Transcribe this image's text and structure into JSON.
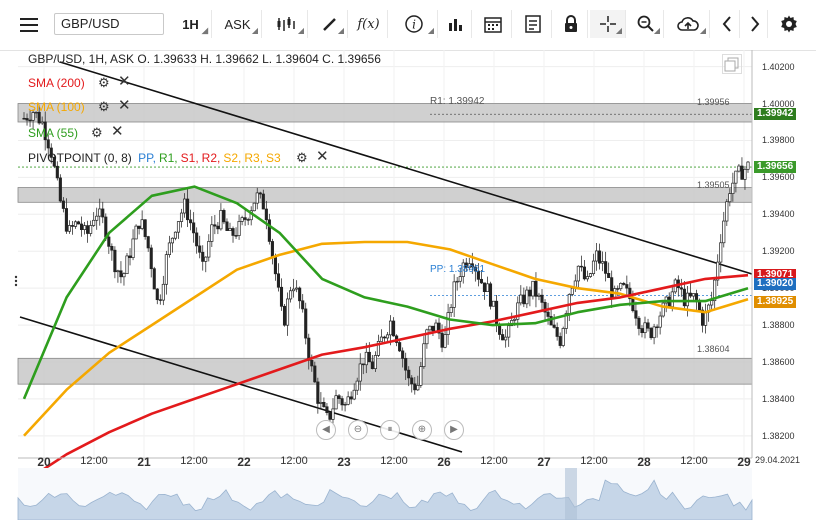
{
  "toolbar": {
    "menu_icon": "hamburger-icon",
    "symbol": "GBP/USD",
    "timeframe": "1H",
    "price_type": "ASK",
    "buttons": [
      "candles-icon",
      "draw-pen-icon",
      "function-icon",
      "info-icon",
      "bar-chart-icon",
      "calendar-icon",
      "report-icon",
      "lock-icon",
      "crosshair-icon",
      "zoom-icon",
      "cloud-upload-icon",
      "chevron-left-icon",
      "chevron-right-icon",
      "gear-icon"
    ],
    "function_label": "f(x)"
  },
  "header": {
    "ohlc": "GBP/USD, 1H, ASK   O. 1.39633 H. 1.39662 L. 1.39604 C. 1.39656"
  },
  "indicators": {
    "sma200": {
      "label": "SMA (200)",
      "color": "#e31a1c"
    },
    "sma100": {
      "label": "SMA (100)",
      "color": "#f5a800"
    },
    "sma55": {
      "label": "SMA (55)",
      "color": "#2e9e1e"
    },
    "pivot": {
      "prefix": "PIVOTPOINT (0, 8)",
      "items": [
        {
          "label": "PP,",
          "color": "#2a7fd4"
        },
        {
          "label": "R1,",
          "color": "#2e9e1e"
        },
        {
          "label": "S1,",
          "color": "#e31a1c"
        },
        {
          "label": "R2,",
          "color": "#e31a1c"
        },
        {
          "label": "S2,",
          "color": "#f5a800"
        },
        {
          "label": "R3,",
          "color": "#f5a800"
        },
        {
          "label": "S3",
          "color": "#f5a800"
        }
      ]
    }
  },
  "annotations": {
    "r1": "R1: 1.39942",
    "pp": "PP: 1.38961",
    "level_top": "1.39956",
    "level_mid": "1.39505",
    "level_bot": "1.38604"
  },
  "price_tags": [
    {
      "value": "1.39942",
      "price": 1.39942,
      "color": "#2e7d1e"
    },
    {
      "value": "1.39656",
      "price": 1.39656,
      "color": "#3a9a2a"
    },
    {
      "value": "1.39071",
      "price": 1.39071,
      "color": "#d7191c"
    },
    {
      "value": "1.39020",
      "price": 1.3902,
      "color": "#1f6fc0"
    },
    {
      "value": "1.38925",
      "price": 1.38925,
      "color": "#e08e00"
    }
  ],
  "chart_data": {
    "type": "candlestick",
    "symbol": "GBP/USD",
    "timeframe": "1H",
    "date_label": "29.04.2021",
    "x_ticks": [
      {
        "label": "20",
        "day": true
      },
      {
        "label": "12:00"
      },
      {
        "label": "21",
        "day": true
      },
      {
        "label": "12:00"
      },
      {
        "label": "22",
        "day": true
      },
      {
        "label": "12:00"
      },
      {
        "label": "23",
        "day": true
      },
      {
        "label": "12:00"
      },
      {
        "label": "26",
        "day": true
      },
      {
        "label": "12:00"
      },
      {
        "label": "27",
        "day": true
      },
      {
        "label": "12:00"
      },
      {
        "label": "28",
        "day": true
      },
      {
        "label": "12:00"
      },
      {
        "label": "29",
        "day": true
      }
    ],
    "y_ticks": [
      "1.40200",
      "1.40000",
      "1.39800",
      "1.39600",
      "1.39400",
      "1.39200",
      "1.39000",
      "1.38800",
      "1.38600",
      "1.38400",
      "1.38200"
    ],
    "ylim": [
      1.3808,
      1.4029
    ],
    "close_path": [
      1.3992,
      1.3996,
      1.399,
      1.3975,
      1.3948,
      1.393,
      1.3936,
      1.3928,
      1.3942,
      1.3935,
      1.3915,
      1.3905,
      1.3922,
      1.3938,
      1.392,
      1.389,
      1.3918,
      1.3935,
      1.3945,
      1.393,
      1.391,
      1.3932,
      1.3938,
      1.3928,
      1.3932,
      1.394,
      1.395,
      1.3944,
      1.3912,
      1.388,
      1.3905,
      1.389,
      1.386,
      1.3838,
      1.3828,
      1.3842,
      1.3836,
      1.385,
      1.3862,
      1.3858,
      1.3872,
      1.3882,
      1.387,
      1.385,
      1.3846,
      1.3875,
      1.388,
      1.387,
      1.3898,
      1.3912,
      1.3918,
      1.3905,
      1.3898,
      1.388,
      1.3872,
      1.3888,
      1.3895,
      1.39,
      1.389,
      1.3878,
      1.3872,
      1.3898,
      1.3912,
      1.3902,
      1.3918,
      1.391,
      1.3895,
      1.39,
      1.3893,
      1.388,
      1.3875,
      1.3885,
      1.3892,
      1.3902,
      1.3893,
      1.3895,
      1.3882,
      1.3894,
      1.393,
      1.3955,
      1.3962,
      1.3966
    ],
    "sma200": [
      1.3795,
      1.381,
      1.3822,
      1.3832,
      1.384,
      1.3848,
      1.3856,
      1.3864,
      1.3868,
      1.3873,
      1.3878,
      1.3882,
      1.3887,
      1.3892,
      1.3895,
      1.39,
      1.3905,
      1.3907
    ],
    "sma100": [
      1.382,
      1.3845,
      1.3865,
      1.388,
      1.3895,
      1.391,
      1.3918,
      1.3924,
      1.3925,
      1.3925,
      1.3921,
      1.3913,
      1.3905,
      1.39,
      1.3897,
      1.389,
      1.3887,
      1.3894
    ],
    "sma55": [
      1.384,
      1.3895,
      1.393,
      1.395,
      1.3955,
      1.3946,
      1.393,
      1.3905,
      1.3895,
      1.389,
      1.3883,
      1.388,
      1.3881,
      1.3887,
      1.3891,
      1.3893,
      1.3893,
      1.39
    ],
    "pivot_levels": {
      "R1": 1.39942,
      "PP": 1.38961
    },
    "zones": [
      [
        1.399,
        1.4
      ],
      [
        1.39465,
        1.39545
      ],
      [
        1.3848,
        1.3862
      ]
    ]
  },
  "nav_buttons": [
    "scroll-left-icon",
    "zoom-out-icon",
    "zoom-reset-icon",
    "zoom-in-icon",
    "scroll-right-icon"
  ]
}
